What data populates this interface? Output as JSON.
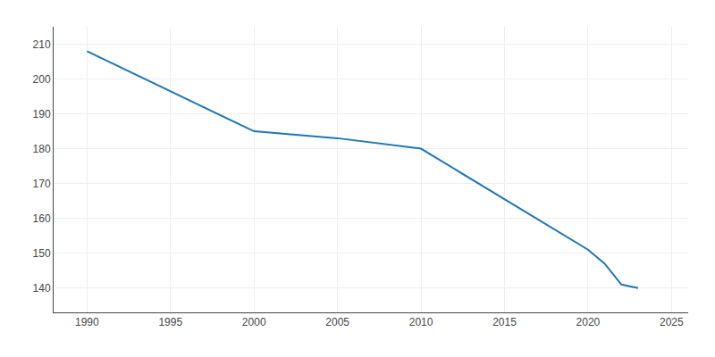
{
  "chart_data": {
    "type": "line",
    "x": [
      1990,
      2000,
      2005,
      2010,
      2020,
      2021,
      2022,
      2023
    ],
    "values": [
      208,
      185,
      183,
      180,
      151,
      147,
      141,
      140
    ],
    "xlim": [
      1988,
      2026
    ],
    "ylim": [
      133,
      215
    ],
    "xticks": [
      1990,
      1995,
      2000,
      2005,
      2010,
      2015,
      2020,
      2025
    ],
    "yticks": [
      140,
      150,
      160,
      170,
      180,
      190,
      200,
      210
    ],
    "grid": true
  }
}
